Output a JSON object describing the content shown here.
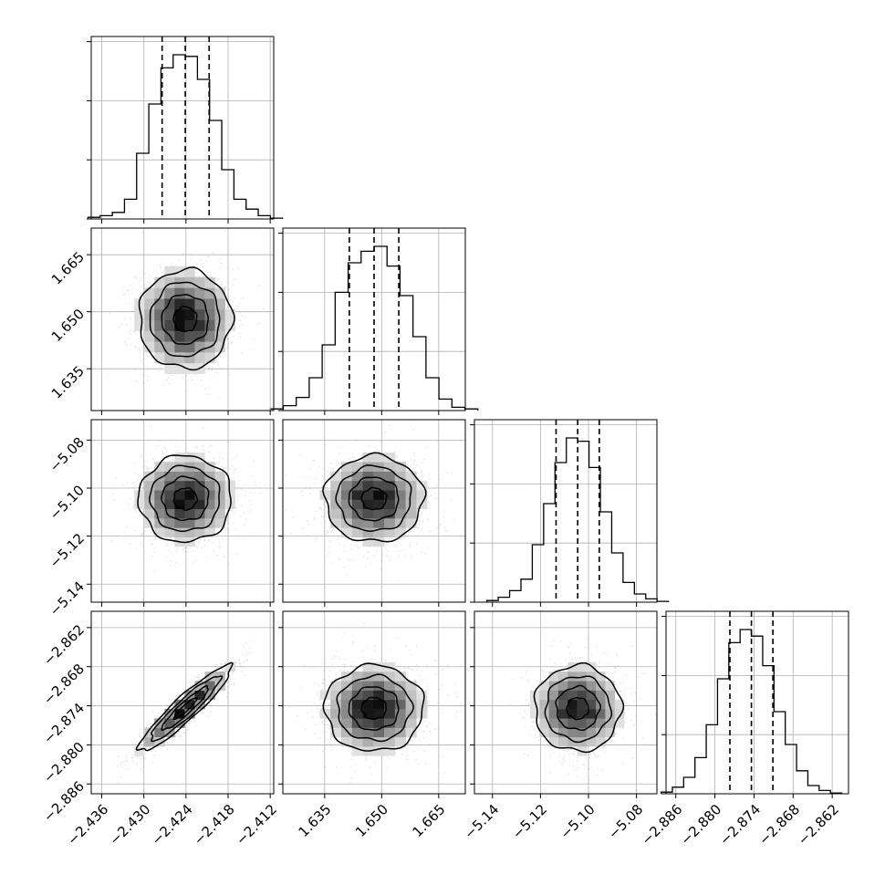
{
  "chart_data": {
    "type": "corner",
    "title": "",
    "parameters": [
      {
        "range": [
          -2.4375,
          -2.4115
        ],
        "ticks": [
          -2.436,
          -2.43,
          -2.424,
          -2.418,
          -2.412
        ],
        "tick_labels": [
          "−2.436",
          "−2.430",
          "−2.424",
          "−2.418",
          "−2.412"
        ],
        "quantiles": [
          -2.4274,
          -2.4241,
          -2.4207
        ],
        "median": -2.4241,
        "sigma": 0.0033
      },
      {
        "range": [
          1.624,
          1.672
        ],
        "ticks": [
          1.635,
          1.65,
          1.665
        ],
        "tick_labels": [
          "1.635",
          "1.650",
          "1.665"
        ],
        "quantiles": [
          1.6415,
          1.648,
          1.6545
        ],
        "median": 1.648,
        "sigma": 0.0065
      },
      {
        "range": [
          -5.1475,
          -5.0715
        ],
        "ticks": [
          -5.14,
          -5.12,
          -5.1,
          -5.08
        ],
        "tick_labels": [
          "−5.14",
          "−5.12",
          "−5.10",
          "−5.08"
        ],
        "quantiles": [
          -5.1135,
          -5.1045,
          -5.0955
        ],
        "median": -5.1045,
        "sigma": 0.009
      },
      {
        "range": [
          -2.8875,
          -2.8595
        ],
        "ticks": [
          -2.886,
          -2.88,
          -2.874,
          -2.868,
          -2.862
        ],
        "tick_labels": [
          "−2.886",
          "−2.880",
          "−2.874",
          "−2.868",
          "−2.862"
        ],
        "quantiles": [
          -2.8777,
          -2.8744,
          -2.8711
        ],
        "median": -2.8744,
        "sigma": 0.0033
      }
    ],
    "histograms": [
      [
        0.01,
        0.02,
        0.04,
        0.12,
        0.4,
        0.7,
        0.92,
        1.0,
        0.99,
        0.85,
        0.6,
        0.3,
        0.12,
        0.06,
        0.02,
        0.005
      ],
      [
        0.01,
        0.03,
        0.08,
        0.2,
        0.4,
        0.72,
        0.9,
        0.97,
        1.0,
        0.88,
        0.7,
        0.45,
        0.2,
        0.07,
        0.02,
        0.01
      ],
      [
        0.01,
        0.03,
        0.07,
        0.14,
        0.35,
        0.6,
        0.85,
        1.0,
        0.98,
        0.82,
        0.55,
        0.3,
        0.12,
        0.05,
        0.02,
        0.005
      ],
      [
        0.01,
        0.04,
        0.1,
        0.22,
        0.42,
        0.7,
        0.92,
        1.0,
        0.96,
        0.78,
        0.5,
        0.3,
        0.14,
        0.05,
        0.02,
        0.005
      ]
    ],
    "correlations": {
      "1,0": 0.0,
      "2,0": 0.0,
      "2,1": 0.0,
      "3,0": 0.93,
      "3,1": 0.0,
      "3,2": 0.0
    },
    "contour_levels_sigma": [
      0.5,
      1.0,
      1.5,
      2.0
    ],
    "grid": true,
    "colors": {
      "line": "#000000",
      "grid": "#b0b0b0",
      "density": "#000000"
    }
  }
}
